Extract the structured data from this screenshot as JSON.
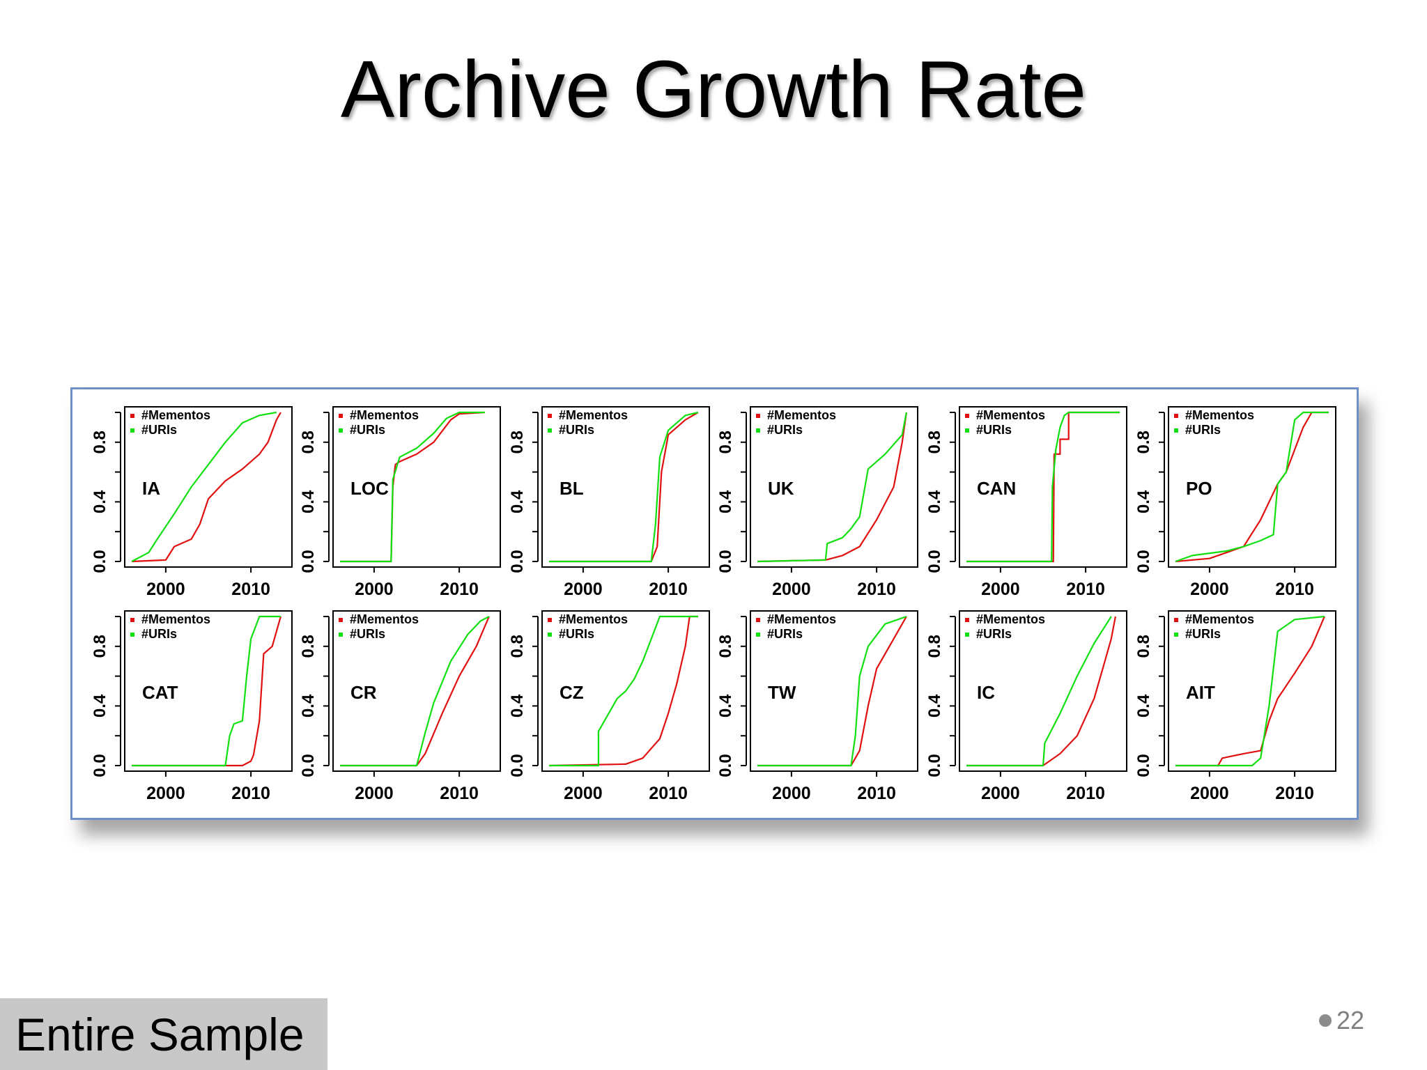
{
  "slide": {
    "title": "Archive Growth Rate",
    "footer_label": "Entire Sample",
    "page_number": "22"
  },
  "colors": {
    "mementos": "#e01010",
    "uris": "#10e010",
    "frame": "#6e8fc7"
  },
  "chart_data": [
    {
      "type": "line",
      "label": "IA",
      "xlim": [
        1996,
        2014
      ],
      "ylim": [
        0,
        1
      ],
      "x_ticks": [
        2000,
        2010
      ],
      "y_ticks": [
        "0.0",
        "0.4",
        "0.8"
      ],
      "series": [
        {
          "name": "#Mementos",
          "points": [
            [
              1996,
              0
            ],
            [
              2000,
              0.01
            ],
            [
              2001,
              0.1
            ],
            [
              2003,
              0.15
            ],
            [
              2004,
              0.25
            ],
            [
              2005,
              0.42
            ],
            [
              2007,
              0.54
            ],
            [
              2009,
              0.62
            ],
            [
              2011,
              0.72
            ],
            [
              2012,
              0.8
            ],
            [
              2013,
              0.95
            ],
            [
              2013.5,
              1
            ]
          ]
        },
        {
          "name": "#URIs",
          "points": [
            [
              1996,
              0
            ],
            [
              1998,
              0.06
            ],
            [
              1999,
              0.15
            ],
            [
              2001,
              0.32
            ],
            [
              2003,
              0.5
            ],
            [
              2005,
              0.65
            ],
            [
              2007,
              0.8
            ],
            [
              2009,
              0.93
            ],
            [
              2011,
              0.98
            ],
            [
              2013,
              1
            ]
          ]
        }
      ]
    },
    {
      "type": "line",
      "label": "LOC",
      "xlim": [
        1996,
        2014
      ],
      "ylim": [
        0,
        1
      ],
      "x_ticks": [
        2000,
        2010
      ],
      "y_ticks": [
        "0.0",
        "0.4",
        "0.8"
      ],
      "series": [
        {
          "name": "#Mementos",
          "points": [
            [
              1996,
              0
            ],
            [
              2002,
              0
            ],
            [
              2002.2,
              0.5
            ],
            [
              2002.5,
              0.65
            ],
            [
              2003,
              0.67
            ],
            [
              2005,
              0.72
            ],
            [
              2007,
              0.8
            ],
            [
              2009,
              0.95
            ],
            [
              2010,
              0.99
            ],
            [
              2013,
              1
            ]
          ]
        },
        {
          "name": "#URIs",
          "points": [
            [
              1996,
              0
            ],
            [
              2002,
              0
            ],
            [
              2002.2,
              0.55
            ],
            [
              2003,
              0.7
            ],
            [
              2005,
              0.76
            ],
            [
              2007,
              0.86
            ],
            [
              2008.5,
              0.96
            ],
            [
              2010,
              1
            ],
            [
              2013,
              1
            ]
          ]
        }
      ]
    },
    {
      "type": "line",
      "label": "BL",
      "xlim": [
        1996,
        2014
      ],
      "ylim": [
        0,
        1
      ],
      "x_ticks": [
        2000,
        2010
      ],
      "y_ticks": [
        "0.0",
        "0.4",
        "0.8"
      ],
      "series": [
        {
          "name": "#Mementos",
          "points": [
            [
              1996,
              0
            ],
            [
              2008,
              0
            ],
            [
              2008.7,
              0.1
            ],
            [
              2009.2,
              0.6
            ],
            [
              2010,
              0.85
            ],
            [
              2012,
              0.95
            ],
            [
              2013.5,
              1
            ]
          ]
        },
        {
          "name": "#URIs",
          "points": [
            [
              1996,
              0
            ],
            [
              2008,
              0
            ],
            [
              2008.5,
              0.25
            ],
            [
              2009,
              0.7
            ],
            [
              2010,
              0.88
            ],
            [
              2012,
              0.98
            ],
            [
              2013.5,
              1
            ]
          ]
        }
      ]
    },
    {
      "type": "line",
      "label": "UK",
      "xlim": [
        1996,
        2014
      ],
      "ylim": [
        0,
        1
      ],
      "x_ticks": [
        2000,
        2010
      ],
      "y_ticks": [
        "0.0",
        "0.4",
        "0.8"
      ],
      "series": [
        {
          "name": "#Mementos",
          "points": [
            [
              1996,
              0
            ],
            [
              2004,
              0.01
            ],
            [
              2006,
              0.04
            ],
            [
              2008,
              0.1
            ],
            [
              2010,
              0.28
            ],
            [
              2012,
              0.5
            ],
            [
              2013,
              0.8
            ],
            [
              2013.5,
              1
            ]
          ]
        },
        {
          "name": "#URIs",
          "points": [
            [
              1996,
              0
            ],
            [
              2004,
              0.01
            ],
            [
              2004.2,
              0.12
            ],
            [
              2006,
              0.16
            ],
            [
              2007,
              0.22
            ],
            [
              2008,
              0.3
            ],
            [
              2009,
              0.62
            ],
            [
              2011,
              0.72
            ],
            [
              2013,
              0.85
            ],
            [
              2013.5,
              1
            ]
          ]
        }
      ]
    },
    {
      "type": "line",
      "label": "CAN",
      "xlim": [
        1996,
        2014
      ],
      "ylim": [
        0,
        1
      ],
      "x_ticks": [
        2000,
        2010
      ],
      "y_ticks": [
        "0.0",
        "0.4",
        "0.8"
      ],
      "series": [
        {
          "name": "#Mementos",
          "points": [
            [
              1996,
              0
            ],
            [
              2006.2,
              0
            ],
            [
              2006.3,
              0.72
            ],
            [
              2007,
              0.72
            ],
            [
              2007,
              0.82
            ],
            [
              2008,
              0.82
            ],
            [
              2008,
              1
            ],
            [
              2014,
              1
            ]
          ]
        },
        {
          "name": "#URIs",
          "points": [
            [
              1996,
              0
            ],
            [
              2006,
              0
            ],
            [
              2006.1,
              0.5
            ],
            [
              2006.5,
              0.75
            ],
            [
              2007,
              0.9
            ],
            [
              2007.5,
              0.98
            ],
            [
              2008,
              1
            ],
            [
              2014,
              1
            ]
          ]
        }
      ]
    },
    {
      "type": "line",
      "label": "PO",
      "xlim": [
        1996,
        2014
      ],
      "ylim": [
        0,
        1
      ],
      "x_ticks": [
        2000,
        2010
      ],
      "y_ticks": [
        "0.0",
        "0.4",
        "0.8"
      ],
      "series": [
        {
          "name": "#Mementos",
          "points": [
            [
              1996,
              0
            ],
            [
              2000,
              0.02
            ],
            [
              2002,
              0.06
            ],
            [
              2004,
              0.1
            ],
            [
              2006,
              0.28
            ],
            [
              2008,
              0.52
            ],
            [
              2009,
              0.6
            ],
            [
              2011,
              0.9
            ],
            [
              2012,
              1
            ],
            [
              2014,
              1
            ]
          ]
        },
        {
          "name": "#URIs",
          "points": [
            [
              1996,
              0
            ],
            [
              1998,
              0.04
            ],
            [
              2002,
              0.07
            ],
            [
              2004,
              0.1
            ],
            [
              2006,
              0.14
            ],
            [
              2007.5,
              0.18
            ],
            [
              2008,
              0.52
            ],
            [
              2009,
              0.6
            ],
            [
              2010,
              0.95
            ],
            [
              2011,
              1
            ],
            [
              2014,
              1
            ]
          ]
        }
      ]
    },
    {
      "type": "line",
      "label": "CAT",
      "xlim": [
        1996,
        2014
      ],
      "ylim": [
        0,
        1
      ],
      "x_ticks": [
        2000,
        2010
      ],
      "y_ticks": [
        "0.0",
        "0.4",
        "0.8"
      ],
      "series": [
        {
          "name": "#Mementos",
          "points": [
            [
              1996,
              0
            ],
            [
              2009,
              0
            ],
            [
              2010,
              0.03
            ],
            [
              2010.3,
              0.07
            ],
            [
              2011,
              0.3
            ],
            [
              2011.5,
              0.75
            ],
            [
              2012.5,
              0.8
            ],
            [
              2013.5,
              1
            ]
          ]
        },
        {
          "name": "#URIs",
          "points": [
            [
              1996,
              0
            ],
            [
              2007,
              0
            ],
            [
              2007.5,
              0.2
            ],
            [
              2008,
              0.28
            ],
            [
              2009,
              0.3
            ],
            [
              2009.5,
              0.6
            ],
            [
              2010,
              0.85
            ],
            [
              2011,
              1
            ],
            [
              2013.5,
              1
            ]
          ]
        }
      ]
    },
    {
      "type": "line",
      "label": "CR",
      "xlim": [
        1996,
        2014
      ],
      "ylim": [
        0,
        1
      ],
      "x_ticks": [
        2000,
        2010
      ],
      "y_ticks": [
        "0.0",
        "0.4",
        "0.8"
      ],
      "series": [
        {
          "name": "#Mementos",
          "points": [
            [
              1996,
              0
            ],
            [
              2005,
              0
            ],
            [
              2006,
              0.08
            ],
            [
              2008,
              0.35
            ],
            [
              2010,
              0.6
            ],
            [
              2012,
              0.8
            ],
            [
              2013.5,
              1
            ]
          ]
        },
        {
          "name": "#URIs",
          "points": [
            [
              1996,
              0
            ],
            [
              2005,
              0
            ],
            [
              2006,
              0.22
            ],
            [
              2007,
              0.42
            ],
            [
              2009,
              0.7
            ],
            [
              2011,
              0.88
            ],
            [
              2012.5,
              0.97
            ],
            [
              2013.5,
              1
            ]
          ]
        }
      ]
    },
    {
      "type": "line",
      "label": "CZ",
      "xlim": [
        1996,
        2014
      ],
      "ylim": [
        0,
        1
      ],
      "x_ticks": [
        2000,
        2010
      ],
      "y_ticks": [
        "0.0",
        "0.4",
        "0.8"
      ],
      "series": [
        {
          "name": "#Mementos",
          "points": [
            [
              1996,
              0
            ],
            [
              2005,
              0.01
            ],
            [
              2007,
              0.05
            ],
            [
              2009,
              0.18
            ],
            [
              2010,
              0.35
            ],
            [
              2011,
              0.55
            ],
            [
              2012,
              0.8
            ],
            [
              2012.5,
              1
            ],
            [
              2013.5,
              1
            ]
          ]
        },
        {
          "name": "#URIs",
          "points": [
            [
              1996,
              0
            ],
            [
              2001.8,
              0
            ],
            [
              2001.8,
              0.23
            ],
            [
              2003,
              0.35
            ],
            [
              2004,
              0.45
            ],
            [
              2005,
              0.5
            ],
            [
              2006,
              0.58
            ],
            [
              2007,
              0.7
            ],
            [
              2008,
              0.85
            ],
            [
              2009,
              1
            ],
            [
              2013.5,
              1
            ]
          ]
        }
      ]
    },
    {
      "type": "line",
      "label": "TW",
      "xlim": [
        1996,
        2014
      ],
      "ylim": [
        0,
        1
      ],
      "x_ticks": [
        2000,
        2010
      ],
      "y_ticks": [
        "0.0",
        "0.4",
        "0.8"
      ],
      "series": [
        {
          "name": "#Mementos",
          "points": [
            [
              1996,
              0
            ],
            [
              2007,
              0
            ],
            [
              2008,
              0.1
            ],
            [
              2009,
              0.4
            ],
            [
              2010,
              0.65
            ],
            [
              2012,
              0.85
            ],
            [
              2013.5,
              1
            ]
          ]
        },
        {
          "name": "#URIs",
          "points": [
            [
              1996,
              0
            ],
            [
              2007,
              0
            ],
            [
              2007.5,
              0.2
            ],
            [
              2008,
              0.6
            ],
            [
              2009,
              0.8
            ],
            [
              2011,
              0.95
            ],
            [
              2013.5,
              1
            ]
          ]
        }
      ]
    },
    {
      "type": "line",
      "label": "IC",
      "xlim": [
        1996,
        2014
      ],
      "ylim": [
        0,
        1
      ],
      "x_ticks": [
        2000,
        2010
      ],
      "y_ticks": [
        "0.0",
        "0.4",
        "0.8"
      ],
      "series": [
        {
          "name": "#Mementos",
          "points": [
            [
              1996,
              0
            ],
            [
              2005,
              0
            ],
            [
              2007,
              0.08
            ],
            [
              2009,
              0.2
            ],
            [
              2011,
              0.45
            ],
            [
              2012,
              0.65
            ],
            [
              2013,
              0.85
            ],
            [
              2013.5,
              1
            ]
          ]
        },
        {
          "name": "#URIs",
          "points": [
            [
              1996,
              0
            ],
            [
              2005,
              0
            ],
            [
              2005.2,
              0.15
            ],
            [
              2007,
              0.35
            ],
            [
              2009,
              0.6
            ],
            [
              2011,
              0.82
            ],
            [
              2013,
              1
            ]
          ]
        }
      ]
    },
    {
      "type": "line",
      "label": "AIT",
      "xlim": [
        1996,
        2014
      ],
      "ylim": [
        0,
        1
      ],
      "x_ticks": [
        2000,
        2010
      ],
      "y_ticks": [
        "0.0",
        "0.4",
        "0.8"
      ],
      "series": [
        {
          "name": "#Mementos",
          "points": [
            [
              1996,
              0
            ],
            [
              2001,
              0
            ],
            [
              2001.5,
              0.05
            ],
            [
              2004,
              0.08
            ],
            [
              2006,
              0.1
            ],
            [
              2007,
              0.3
            ],
            [
              2008,
              0.45
            ],
            [
              2010,
              0.62
            ],
            [
              2012,
              0.8
            ],
            [
              2013.5,
              1
            ]
          ]
        },
        {
          "name": "#URIs",
          "points": [
            [
              1996,
              0
            ],
            [
              2005,
              0
            ],
            [
              2006,
              0.05
            ],
            [
              2007,
              0.4
            ],
            [
              2008,
              0.9
            ],
            [
              2010,
              0.98
            ],
            [
              2013.5,
              1
            ]
          ]
        }
      ]
    }
  ]
}
